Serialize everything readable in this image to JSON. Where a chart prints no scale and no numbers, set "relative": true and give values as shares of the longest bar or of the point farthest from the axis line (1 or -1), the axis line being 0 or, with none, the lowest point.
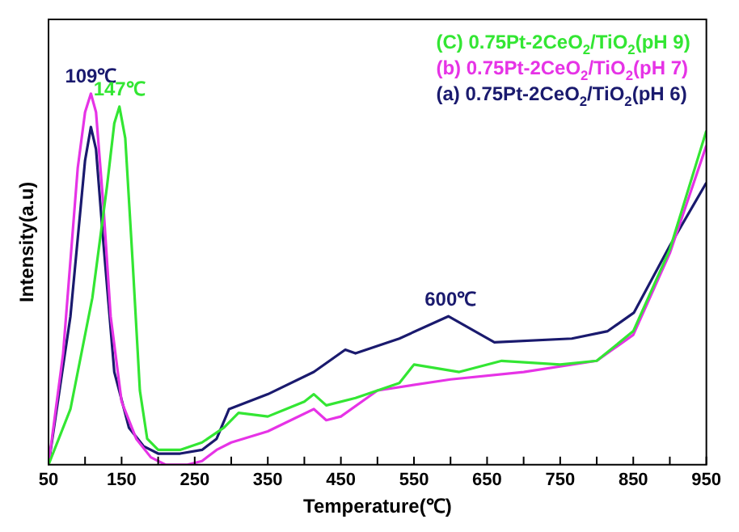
{
  "chart_data": {
    "type": "line",
    "xlabel": "Temperature(℃)",
    "ylabel": "Intensity(a.u)",
    "relative": true,
    "legend": "top right",
    "marker": "none",
    "line_style": "solid",
    "grid": false,
    "xlim": [
      50,
      950
    ],
    "xticks": [
      50,
      {
        "value": 100,
        "label": null
      },
      150,
      {
        "value": 200,
        "label": null
      },
      250,
      {
        "value": 300,
        "label": null
      },
      350,
      {
        "value": 400,
        "label": null
      },
      450,
      {
        "value": 500,
        "label": null
      },
      550,
      {
        "value": 600,
        "label": null
      },
      650,
      {
        "value": 700,
        "label": null
      },
      750,
      {
        "value": 800,
        "label": null
      },
      850,
      {
        "value": 900,
        "label": null
      },
      950
    ],
    "annotations": [
      {
        "text": "109℃",
        "x": 108,
        "y": 0.91
      },
      {
        "text": "147℃",
        "x": 147,
        "y": 0.965
      },
      {
        "text": "600℃",
        "x": 600,
        "y": 0.4
      }
    ],
    "series": [
      {
        "name": "(C) 0.75Pt-2CeO$_{2}$/TiO$_{2}$(pH 9)",
        "color": "#33e633",
        "x": [
          50,
          80,
          110,
          130,
          140,
          147,
          155,
          165,
          175,
          185,
          200,
          230,
          260,
          290,
          310,
          350,
          400,
          413,
          430,
          470,
          530,
          550,
          612,
          670,
          750,
          800,
          850,
          900,
          950
        ],
        "values": [
          0,
          0.15,
          0.45,
          0.75,
          0.92,
          0.965,
          0.88,
          0.55,
          0.2,
          0.07,
          0.04,
          0.04,
          0.06,
          0.1,
          0.14,
          0.13,
          0.17,
          0.19,
          0.16,
          0.18,
          0.22,
          0.27,
          0.25,
          0.28,
          0.27,
          0.28,
          0.36,
          0.58,
          0.9
        ]
      },
      {
        "name": "(b) 0.75Pt-2CeO$_{2}$/TiO$_{2}$(pH 7)",
        "color": "#e633e6",
        "x": [
          50,
          70,
          90,
          100,
          108,
          115,
          125,
          135,
          150,
          170,
          190,
          210,
          240,
          260,
          280,
          300,
          350,
          413,
          430,
          450,
          500,
          600,
          700,
          800,
          850,
          900,
          950
        ],
        "values": [
          0,
          0.3,
          0.8,
          0.95,
          1.0,
          0.95,
          0.7,
          0.4,
          0.17,
          0.07,
          0.02,
          0,
          0,
          0.01,
          0.04,
          0.06,
          0.09,
          0.15,
          0.12,
          0.13,
          0.2,
          0.23,
          0.25,
          0.28,
          0.35,
          0.57,
          0.86
        ]
      },
      {
        "name": "(a) 0.75Pt-2CeO$_{2}$/TiO$_{2}$(pH 6)",
        "color": "#1a1a6e",
        "x": [
          50,
          80,
          100,
          108,
          115,
          125,
          140,
          160,
          180,
          200,
          230,
          260,
          280,
          297,
          350,
          413,
          456,
          470,
          530,
          597,
          660,
          766,
          815,
          851,
          900,
          950
        ],
        "values": [
          0,
          0.4,
          0.82,
          0.91,
          0.85,
          0.6,
          0.25,
          0.1,
          0.05,
          0.03,
          0.03,
          0.04,
          0.07,
          0.15,
          0.19,
          0.25,
          0.31,
          0.3,
          0.34,
          0.4,
          0.33,
          0.34,
          0.36,
          0.41,
          0.59,
          0.76
        ]
      }
    ]
  }
}
